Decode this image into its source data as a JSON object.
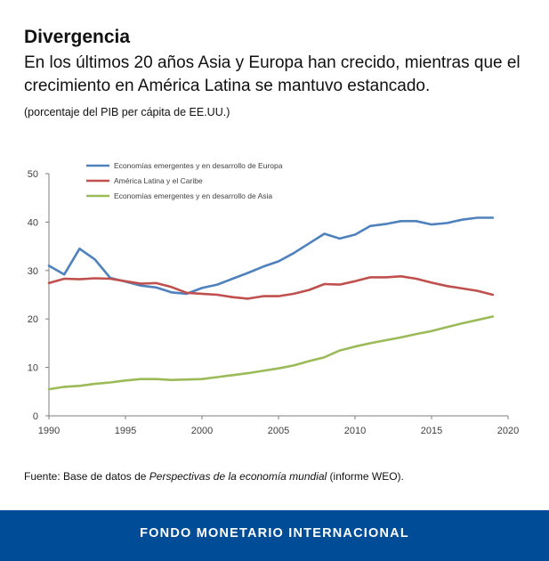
{
  "header": {
    "title": "Divergencia",
    "subtitle": "En los últimos 20 años Asia y Europa han crecido, mientras que el crecimiento en América Latina se mantuvo estancado.",
    "note": "(porcentaje del PIB per cápita de EE.UU.)"
  },
  "source": {
    "prefix": "Fuente: Base de datos de ",
    "italic": "Perspectivas de la economía mundial",
    "suffix": " (informe WEO)."
  },
  "footer": {
    "text": "FONDO MONETARIO INTERNACIONAL"
  },
  "chart_data": {
    "type": "line",
    "title": "",
    "xlabel": "",
    "ylabel": "",
    "xlim": [
      1990,
      2020
    ],
    "ylim": [
      0,
      50
    ],
    "x_ticks": [
      1990,
      1995,
      2000,
      2005,
      2010,
      2015,
      2020
    ],
    "y_ticks": [
      0,
      10,
      20,
      30,
      40,
      50
    ],
    "grid": false,
    "legend_position": "top-left",
    "x": [
      1990,
      1991,
      1992,
      1993,
      1994,
      1995,
      1996,
      1997,
      1998,
      1999,
      2000,
      2001,
      2002,
      2003,
      2004,
      2005,
      2006,
      2007,
      2008,
      2009,
      2010,
      2011,
      2012,
      2013,
      2014,
      2015,
      2016,
      2017,
      2018,
      2019
    ],
    "series": [
      {
        "name": "Economías emergentes y en desarrollo de Europa",
        "color": "#4f81bd",
        "values": [
          31.0,
          29.2,
          34.5,
          32.3,
          28.5,
          27.7,
          26.9,
          26.5,
          25.5,
          25.2,
          26.4,
          27.1,
          28.3,
          29.5,
          30.8,
          31.9,
          33.6,
          35.6,
          37.6,
          36.6,
          37.4,
          39.2,
          39.6,
          40.2,
          40.2,
          39.5,
          39.8,
          40.5,
          40.9,
          40.9
        ]
      },
      {
        "name": "América Latina y el Caribe",
        "color": "#c0504d",
        "values": [
          27.4,
          28.3,
          28.2,
          28.4,
          28.3,
          27.8,
          27.3,
          27.4,
          26.6,
          25.4,
          25.2,
          25.0,
          24.5,
          24.2,
          24.7,
          24.7,
          25.2,
          26.0,
          27.2,
          27.1,
          27.8,
          28.6,
          28.6,
          28.8,
          28.3,
          27.5,
          26.8,
          26.3,
          25.8,
          25.0
        ]
      },
      {
        "name": "Economías emergentes y en desarrollo de Asia",
        "color": "#9bbb59",
        "values": [
          5.5,
          6.0,
          6.2,
          6.6,
          6.9,
          7.3,
          7.6,
          7.6,
          7.4,
          7.5,
          7.6,
          8.0,
          8.4,
          8.8,
          9.3,
          9.8,
          10.4,
          11.3,
          12.1,
          13.5,
          14.3,
          15.0,
          15.6,
          16.2,
          16.9,
          17.5,
          18.3,
          19.1,
          19.8,
          20.5
        ]
      }
    ]
  }
}
